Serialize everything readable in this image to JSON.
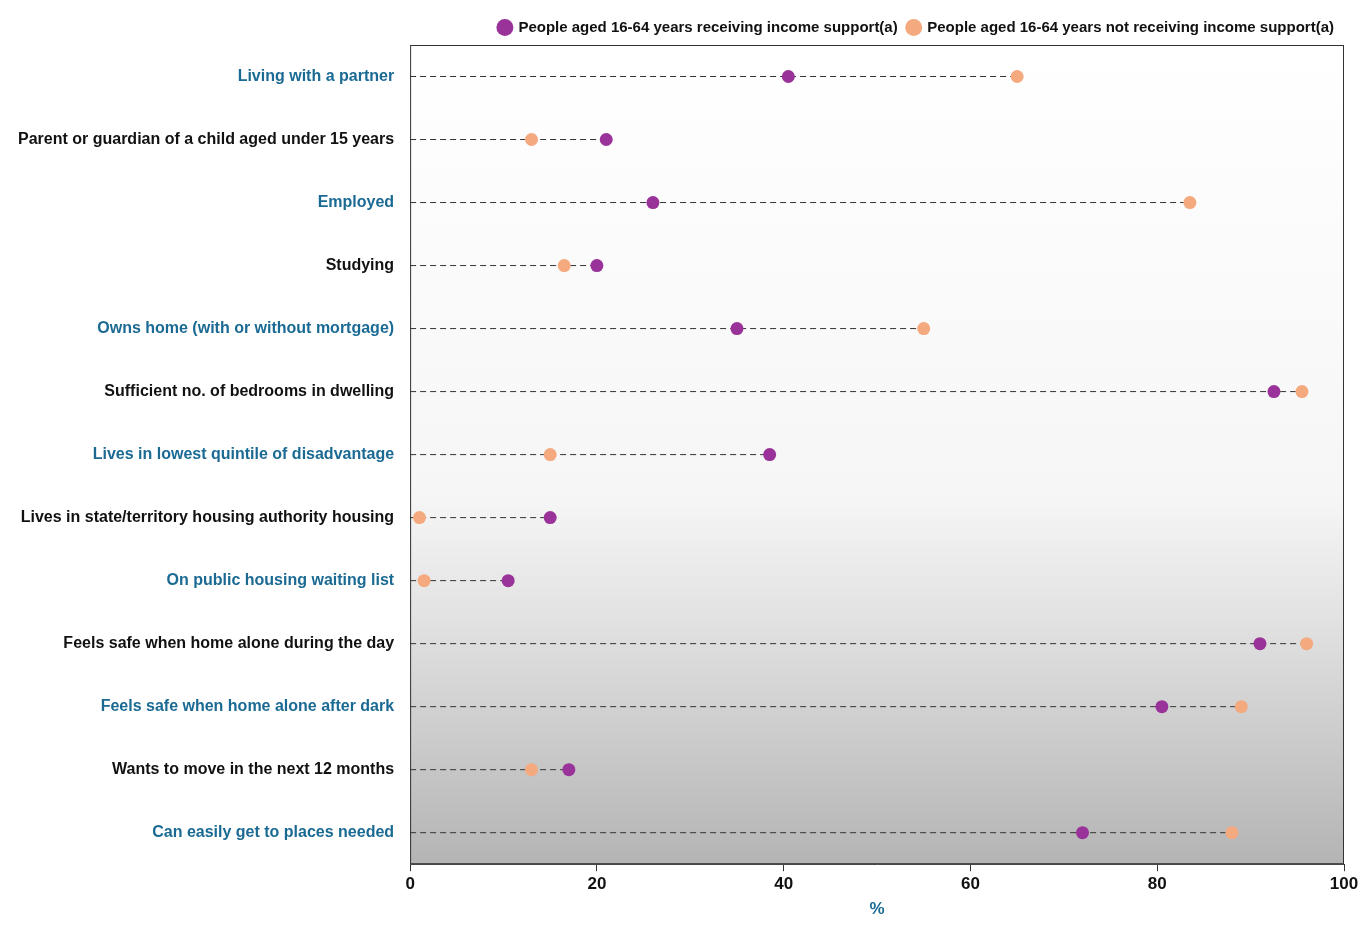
{
  "chart_data": {
    "type": "dot",
    "orientation": "horizontal",
    "marker": "circle",
    "line_style": "dashed",
    "grid": false,
    "legend": "top right",
    "x_label": "%",
    "xlim": [
      0,
      100
    ],
    "xticks": [
      0,
      20,
      40,
      60,
      80,
      100
    ],
    "categories": [
      "Living with a partner",
      "Parent or guardian of a child aged under 15 years",
      "Employed",
      "Studying",
      "Owns home (with or without mortgage)",
      "Sufficient no. of bedrooms in dwelling",
      "Lives in lowest quintile of disadvantage",
      "Lives in state/territory housing authority housing",
      "On public housing waiting list",
      "Feels safe when home alone during the day",
      "Feels safe when home alone after dark",
      "Wants to move in the next 12 months",
      "Can easily get to places needed"
    ],
    "series": [
      {
        "name": "People aged 16-64 years receiving income support(a)",
        "color": "#993399",
        "values": [
          40.5,
          21,
          26,
          20,
          35,
          92.5,
          38.5,
          15,
          10.5,
          91,
          80.5,
          17,
          72
        ]
      },
      {
        "name": "People aged 16-64 years not receiving income support(a)",
        "color": "#f4a97f",
        "values": [
          65,
          13,
          83.5,
          16.5,
          55,
          95.5,
          15,
          1,
          1.5,
          96,
          89,
          13,
          88
        ]
      }
    ]
  }
}
